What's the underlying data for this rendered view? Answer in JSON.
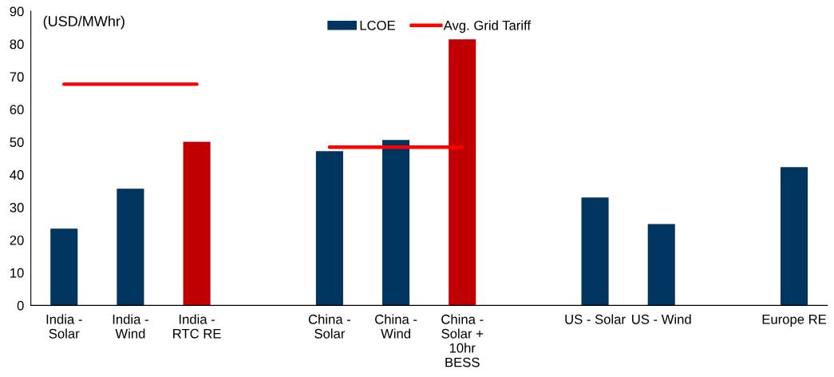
{
  "chart_data": {
    "type": "bar",
    "ylabel": "(USD/MWhr)",
    "categories": [
      "India -\nSolar",
      "India -\nWind",
      "India -\nRTC RE",
      null,
      "China -\nSolar",
      "China -\nWind",
      "China -\nSolar +\n10hr\nBESS",
      null,
      "US - Solar",
      "US - Wind",
      null,
      "Europe RE"
    ],
    "series": [
      {
        "name": "LCOE",
        "color": "#003560",
        "colors": [
          "#003560",
          "#003560",
          "#c00000",
          "#003560",
          "#003560",
          "#003560",
          "#c00000",
          "#003560",
          "#003560",
          "#003560",
          "#003560",
          "#003560"
        ],
        "values": [
          23.5,
          35.7,
          50.1,
          null,
          47.2,
          50.6,
          81.4,
          null,
          33.0,
          24.9,
          null,
          42.3
        ]
      },
      {
        "name": "Avg. Grid Tariff",
        "type": "line",
        "color": "#ff0000",
        "values": [
          67.7,
          67.7,
          67.7,
          null,
          48.4,
          48.4,
          48.4,
          null,
          null,
          null,
          null,
          null
        ]
      }
    ],
    "ylim": [
      0,
      90
    ],
    "yticks": [
      0,
      10,
      20,
      30,
      40,
      50,
      60,
      70,
      80,
      90
    ],
    "grid": false,
    "legend": "top"
  }
}
